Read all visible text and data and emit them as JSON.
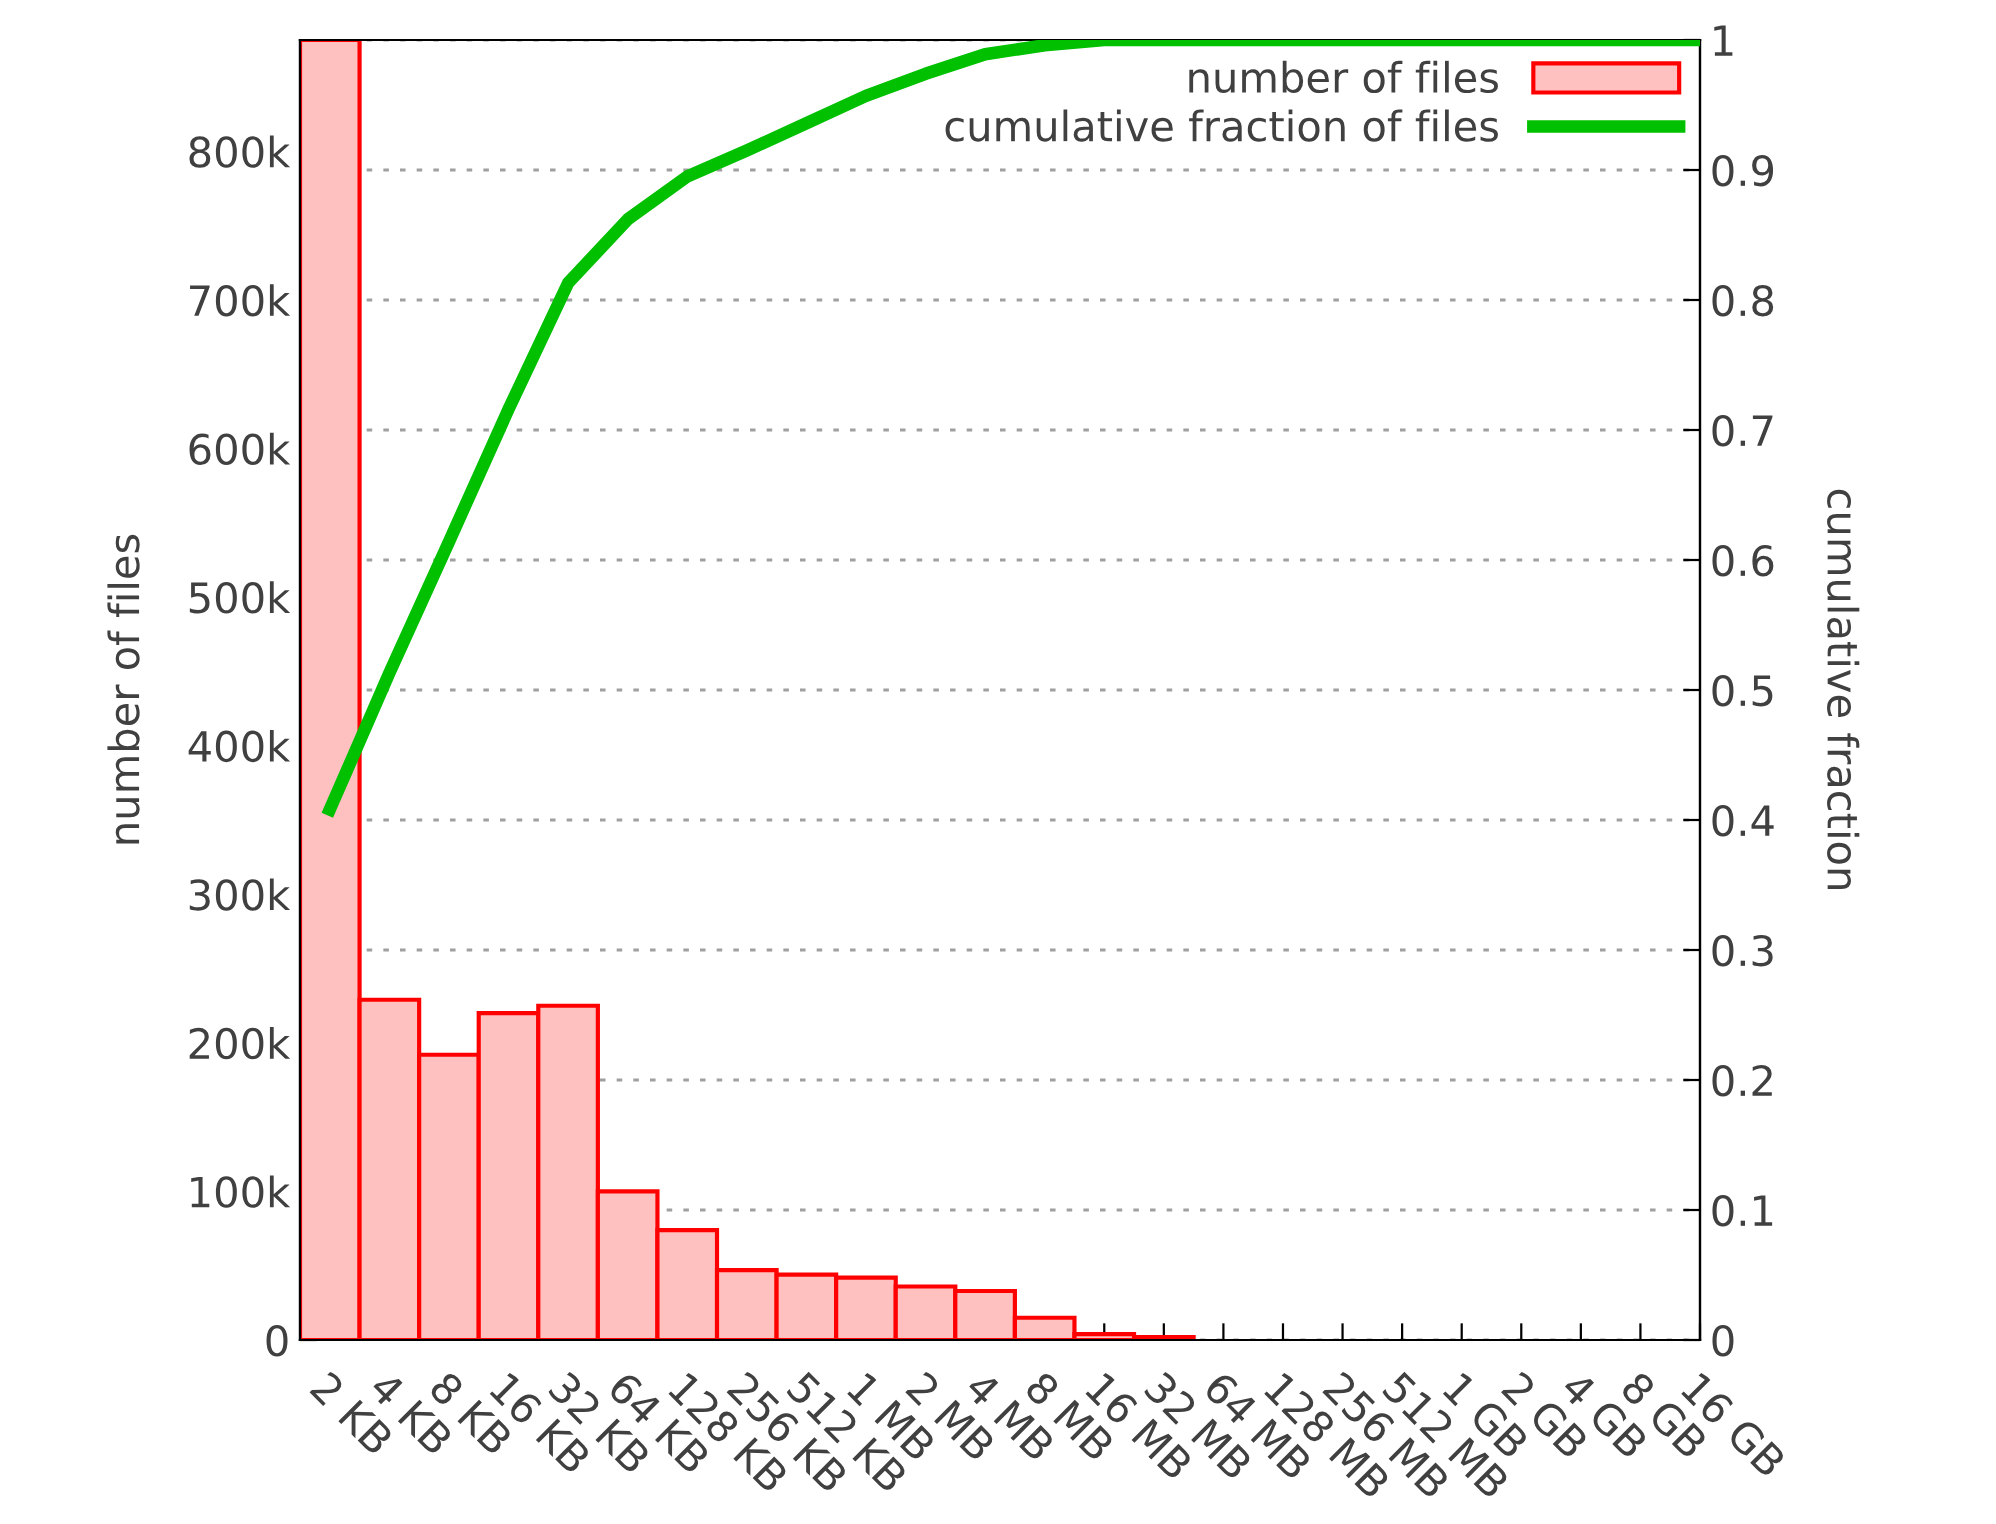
{
  "chart_data": {
    "type": "bar",
    "categories": [
      "2 KB",
      "4 KB",
      "8 KB",
      "16 KB",
      "32 KB",
      "64 KB",
      "128 KB",
      "256 KB",
      "512 KB",
      "1 MB",
      "2 MB",
      "4 MB",
      "8 MB",
      "16 MB",
      "32 MB",
      "64 MB",
      "128 MB",
      "256 MB",
      "512 MB",
      "1 GB",
      "2 GB",
      "4 GB",
      "8 GB",
      "16 GB"
    ],
    "ylabel": "number of files",
    "y2label": "cumulative fraction",
    "series": [
      {
        "name": "number of files",
        "color": "#ffc0c0",
        "values": [
          875000,
          229000,
          192000,
          220000,
          225000,
          100000,
          74000,
          47000,
          44000,
          42000,
          36000,
          33000,
          15000,
          4000,
          2000,
          0,
          0,
          0,
          0,
          0,
          0,
          0,
          0,
          0
        ]
      },
      {
        "name": "cumulative fraction of files",
        "type": "line",
        "axis": "y2",
        "color": "#00c000",
        "values": [
          0.408,
          0.513,
          0.614,
          0.716,
          0.813,
          0.862,
          0.895,
          0.915,
          0.936,
          0.957,
          0.974,
          0.989,
          0.996,
          1,
          1,
          1,
          1,
          1,
          1,
          1,
          1,
          1,
          1,
          1
        ]
      }
    ],
    "ylim": [
      0,
      875000
    ],
    "yticks": [
      0,
      {
        "value": 100000,
        "label": "100k"
      },
      {
        "value": 200000,
        "label": "200k"
      },
      {
        "value": 300000,
        "label": "300k"
      },
      {
        "value": 400000,
        "label": "400k"
      },
      {
        "value": 500000,
        "label": "500k"
      },
      {
        "value": 600000,
        "label": "600k"
      },
      {
        "value": 700000,
        "label": "700k"
      },
      {
        "value": 800000,
        "label": "800k"
      }
    ],
    "y2lim": [
      0,
      1
    ],
    "y2ticks": [
      0,
      0.1,
      0.2,
      0.3,
      0.4,
      0.5,
      0.6,
      0.7,
      0.8,
      0.9,
      1
    ],
    "grid": "y",
    "legend": "top right",
    "line_style": "solid",
    "marker": "none"
  }
}
